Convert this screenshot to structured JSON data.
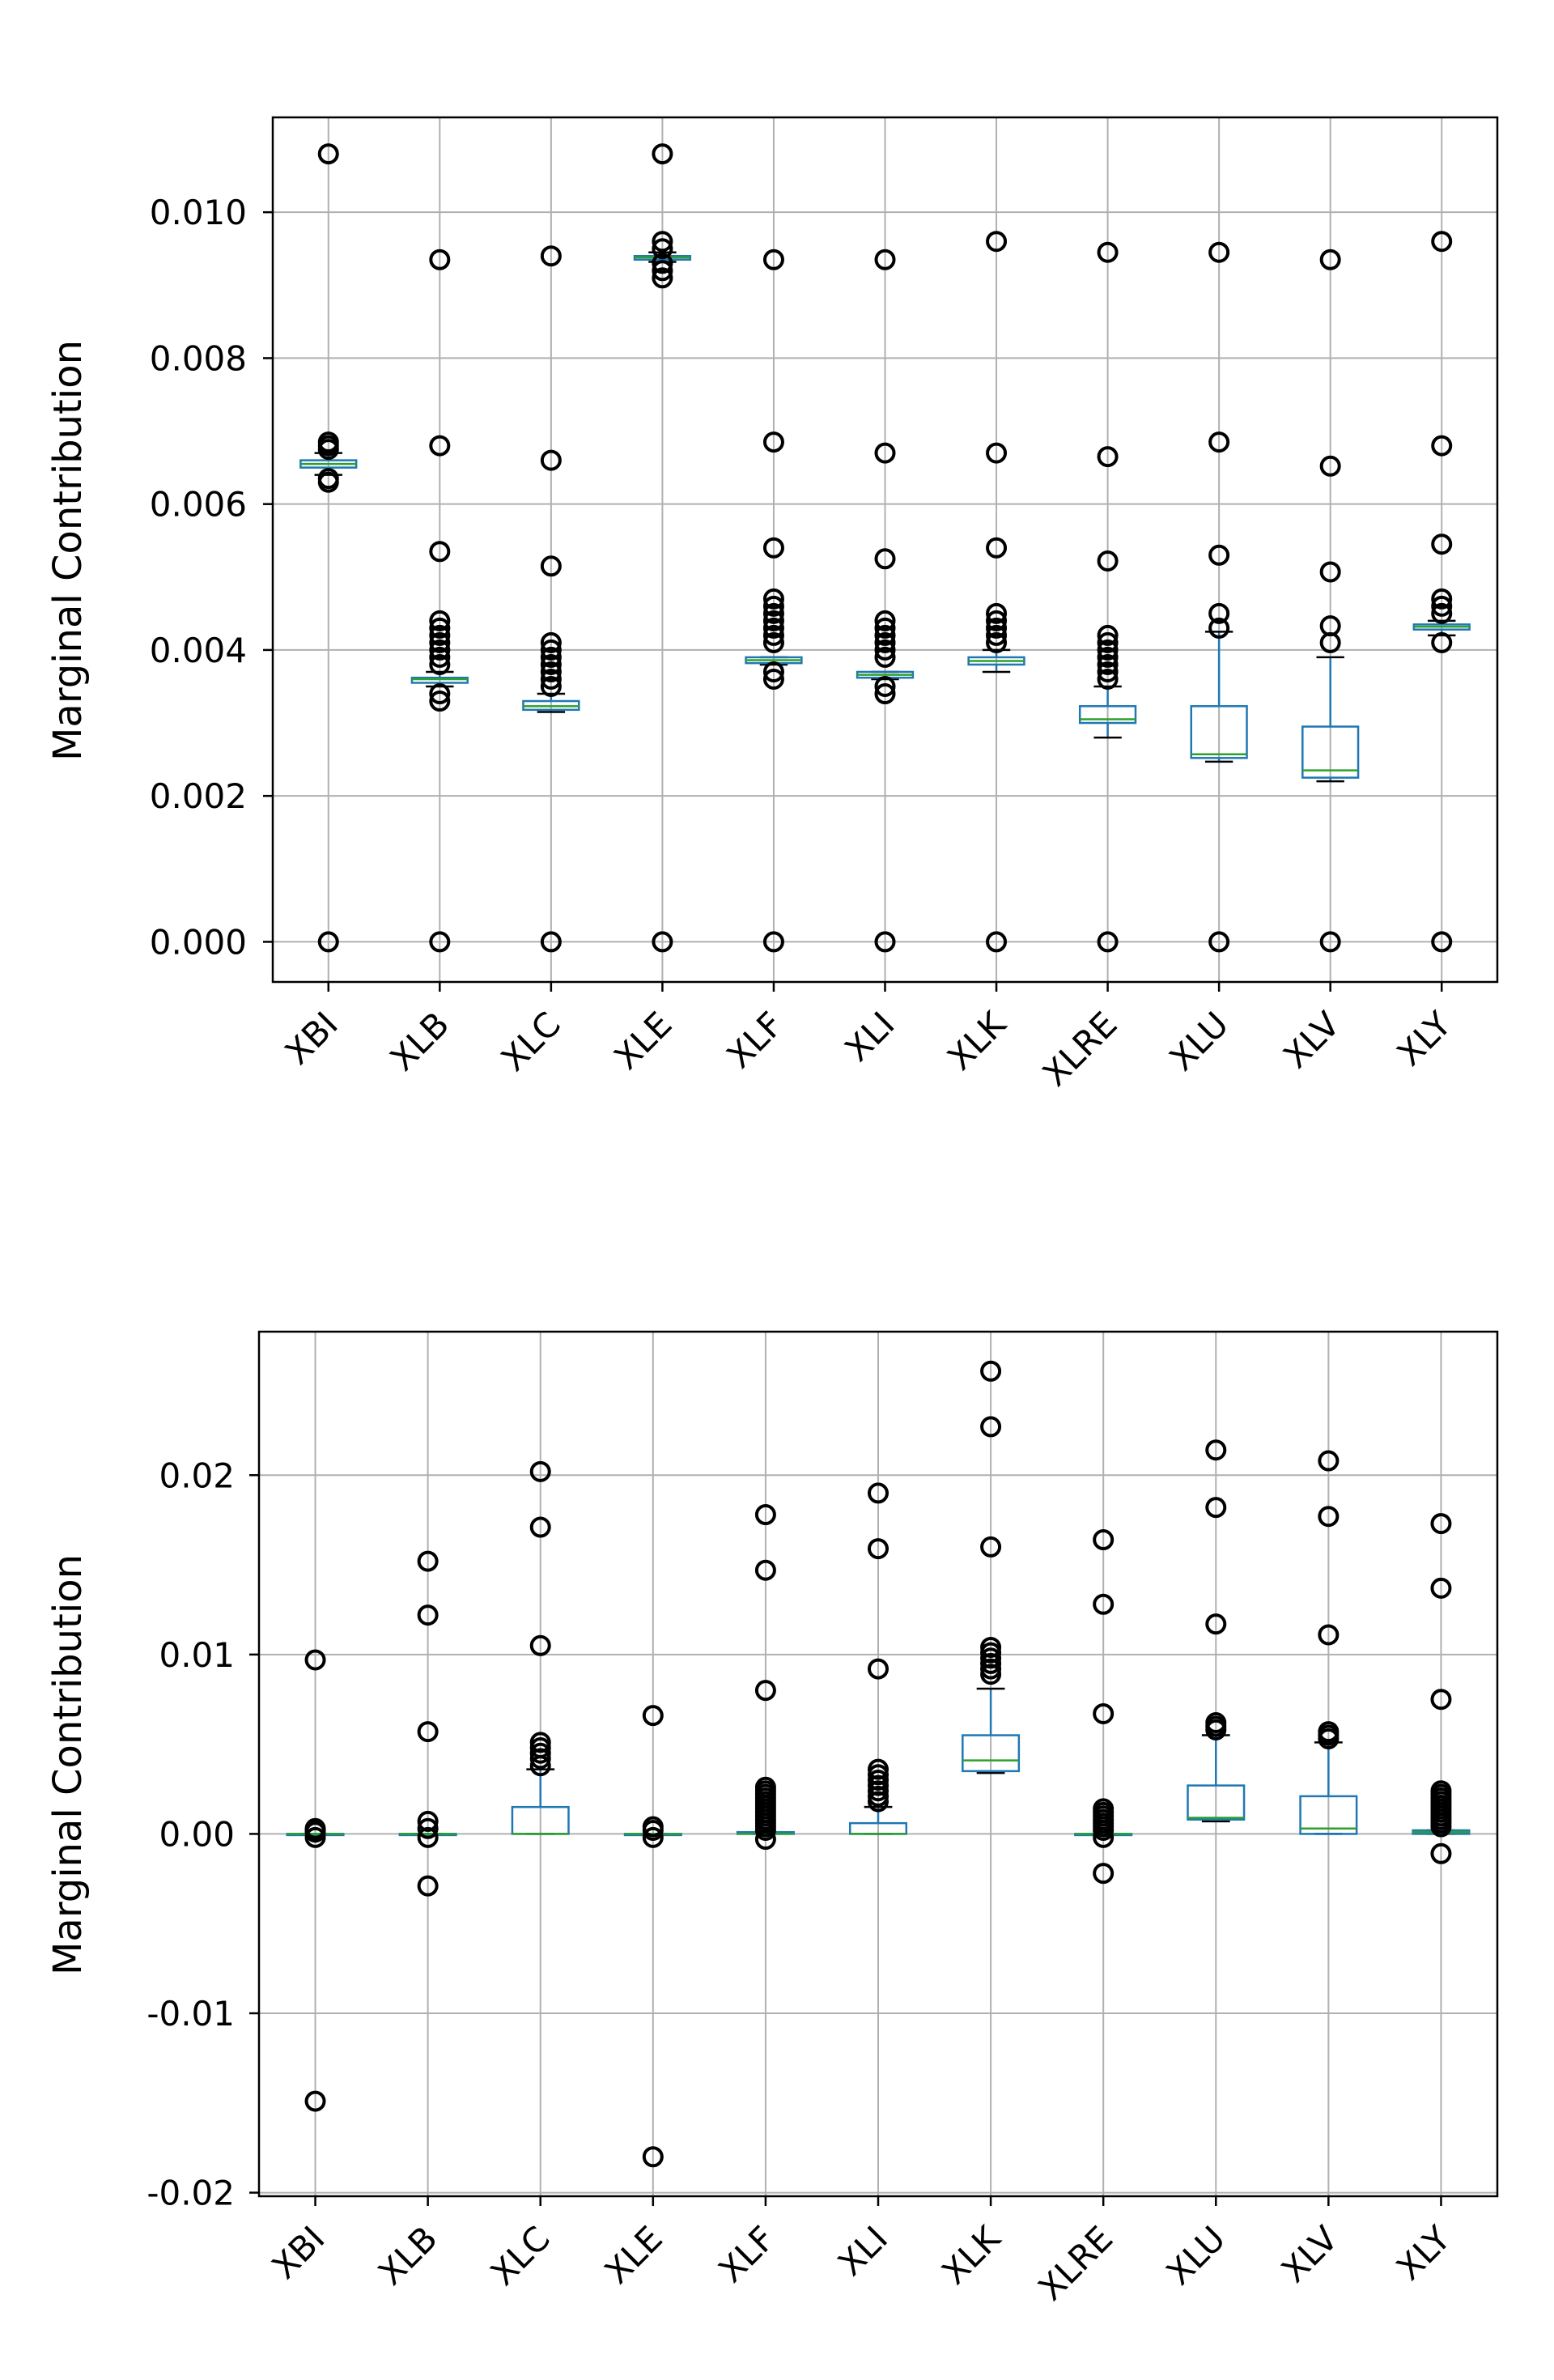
{
  "chart_data": [
    {
      "type": "box",
      "ylabel": "Marginal Contribution",
      "ylim": [
        -0.00055,
        0.0113
      ],
      "yticks": [
        0.0,
        0.002,
        0.004,
        0.006,
        0.008,
        0.01
      ],
      "ytick_labels": [
        "0.000",
        "0.002",
        "0.004",
        "0.006",
        "0.008",
        "0.010"
      ],
      "grid": true,
      "categories": [
        "XBI",
        "XLB",
        "XLC",
        "XLE",
        "XLF",
        "XLI",
        "XLK",
        "XLRE",
        "XLU",
        "XLV",
        "XLY"
      ],
      "boxes": [
        {
          "whislo": 0.0064,
          "q1": 0.0065,
          "med": 0.00655,
          "q3": 0.0066,
          "whishi": 0.0067,
          "fliers": [
            0.0,
            0.0063,
            0.00635,
            0.00675,
            0.0068,
            0.00685,
            0.0108
          ]
        },
        {
          "whislo": 0.0035,
          "q1": 0.00355,
          "med": 0.0036,
          "q3": 0.00362,
          "whishi": 0.0037,
          "fliers": [
            0.0,
            0.0033,
            0.0034,
            0.0038,
            0.0039,
            0.004,
            0.0041,
            0.0042,
            0.0043,
            0.0044,
            0.00535,
            0.0068,
            0.00935
          ]
        },
        {
          "whislo": 0.00315,
          "q1": 0.00318,
          "med": 0.00323,
          "q3": 0.0033,
          "whishi": 0.0034,
          "fliers": [
            0.0,
            0.0035,
            0.0036,
            0.0037,
            0.0038,
            0.0039,
            0.004,
            0.0041,
            0.00515,
            0.0066,
            0.0094
          ]
        },
        {
          "whislo": 0.00932,
          "q1": 0.00935,
          "med": 0.00938,
          "q3": 0.0094,
          "whishi": 0.00945,
          "fliers": [
            0.0,
            0.0091,
            0.0092,
            0.0093,
            0.0095,
            0.0096,
            0.0108
          ]
        },
        {
          "whislo": 0.0038,
          "q1": 0.00382,
          "med": 0.00386,
          "q3": 0.0039,
          "whishi": 0.0039,
          "fliers": [
            0.0,
            0.0036,
            0.0037,
            0.0041,
            0.0042,
            0.0043,
            0.0044,
            0.0045,
            0.0046,
            0.0047,
            0.0054,
            0.00685,
            0.00935
          ]
        },
        {
          "whislo": 0.0036,
          "q1": 0.00362,
          "med": 0.00366,
          "q3": 0.0037,
          "whishi": 0.0037,
          "fliers": [
            0.0,
            0.0034,
            0.0035,
            0.0039,
            0.004,
            0.0041,
            0.0042,
            0.0043,
            0.0044,
            0.00525,
            0.0067,
            0.00935
          ]
        },
        {
          "whislo": 0.0037,
          "q1": 0.0038,
          "med": 0.00385,
          "q3": 0.0039,
          "whishi": 0.004,
          "fliers": [
            0.0,
            0.0041,
            0.0042,
            0.0043,
            0.0044,
            0.0045,
            0.0054,
            0.0067,
            0.0096
          ]
        },
        {
          "whislo": 0.0028,
          "q1": 0.003,
          "med": 0.00305,
          "q3": 0.00323,
          "whishi": 0.0035,
          "fliers": [
            0.0,
            0.0036,
            0.0037,
            0.0038,
            0.0039,
            0.004,
            0.0041,
            0.0042,
            0.00522,
            0.00665,
            0.00945
          ]
        },
        {
          "whislo": 0.00247,
          "q1": 0.00252,
          "med": 0.00257,
          "q3": 0.00323,
          "whishi": 0.00425,
          "fliers": [
            0.0,
            0.0043,
            0.0045,
            0.0053,
            0.00685,
            0.00945
          ]
        },
        {
          "whislo": 0.0022,
          "q1": 0.00225,
          "med": 0.00235,
          "q3": 0.00295,
          "whishi": 0.0039,
          "fliers": [
            0.0,
            0.0041,
            0.00433,
            0.00507,
            0.00652,
            0.00935
          ]
        },
        {
          "whislo": 0.0042,
          "q1": 0.00428,
          "med": 0.00432,
          "q3": 0.00435,
          "whishi": 0.0044,
          "fliers": [
            0.0,
            0.0041,
            0.0045,
            0.0046,
            0.0047,
            0.00545,
            0.0068,
            0.0096
          ]
        }
      ]
    },
    {
      "type": "box",
      "ylabel": "Marginal Contribution",
      "ylim": [
        -0.0202,
        0.028
      ],
      "yticks": [
        -0.02,
        -0.01,
        0.0,
        0.01,
        0.02
      ],
      "ytick_labels": [
        "-0.02",
        "-0.01",
        "0.00",
        "0.01",
        "0.02"
      ],
      "grid": true,
      "categories": [
        "XBI",
        "XLB",
        "XLC",
        "XLE",
        "XLF",
        "XLI",
        "XLK",
        "XLRE",
        "XLU",
        "XLV",
        "XLY"
      ],
      "boxes": [
        {
          "whislo": 0.0,
          "q1": 0.0,
          "med": 0.0,
          "q3": 0.0,
          "whishi": 0.0,
          "fliers": [
            -0.0149,
            -0.0002,
            0.0001,
            0.0002,
            0.0003,
            0.0097
          ]
        },
        {
          "whislo": 0.0,
          "q1": 0.0,
          "med": 0.0,
          "q3": 0.0,
          "whishi": 0.0,
          "fliers": [
            -0.0029,
            -0.0002,
            0.0003,
            0.0007,
            0.0057,
            0.0122,
            0.0152
          ]
        },
        {
          "whislo": 0.0,
          "q1": 0.0,
          "med": 0.0,
          "q3": 0.0015,
          "whishi": 0.0036,
          "fliers": [
            0.0038,
            0.0042,
            0.0045,
            0.0048,
            0.0051,
            0.0105,
            0.0171,
            0.0202
          ]
        },
        {
          "whislo": 0.0,
          "q1": 0.0,
          "med": 0.0,
          "q3": 0.0,
          "whishi": 0.0,
          "fliers": [
            -0.018,
            -0.0002,
            0.0002,
            0.0004,
            0.0066
          ]
        },
        {
          "whislo": 0.0,
          "q1": 0.0,
          "med": 0.0,
          "q3": 0.0001,
          "whishi": 0.0001,
          "fliers": [
            -0.0003,
            0.0002,
            0.0004,
            0.0006,
            0.0008,
            0.001,
            0.0012,
            0.0014,
            0.0016,
            0.0018,
            0.002,
            0.0022,
            0.0024,
            0.0026,
            0.008,
            0.0147,
            0.0178
          ]
        },
        {
          "whislo": 0.0,
          "q1": 0.0,
          "med": 0.0,
          "q3": 0.0006,
          "whishi": 0.0015,
          "fliers": [
            0.0018,
            0.0021,
            0.0024,
            0.0027,
            0.003,
            0.0033,
            0.0036,
            0.0092,
            0.0159,
            0.019
          ]
        },
        {
          "whislo": 0.0034,
          "q1": 0.0035,
          "med": 0.0041,
          "q3": 0.0055,
          "whishi": 0.0081,
          "fliers": [
            0.0089,
            0.0092,
            0.0095,
            0.0098,
            0.0101,
            0.0104,
            0.016,
            0.0227,
            0.0258
          ]
        },
        {
          "whislo": 0.0,
          "q1": 0.0,
          "med": 0.0,
          "q3": 0.0,
          "whishi": 0.0,
          "fliers": [
            -0.0022,
            -0.0002,
            0.0002,
            0.0004,
            0.0006,
            0.0008,
            0.001,
            0.0012,
            0.0014,
            0.0067,
            0.0128,
            0.0164
          ]
        },
        {
          "whislo": 0.0007,
          "q1": 0.0008,
          "med": 0.0009,
          "q3": 0.0027,
          "whishi": 0.0055,
          "fliers": [
            0.0058,
            0.006,
            0.0062,
            0.0117,
            0.0182,
            0.0214
          ]
        },
        {
          "whislo": 0.0,
          "q1": 0.0,
          "med": 0.0003,
          "q3": 0.0021,
          "whishi": 0.0051,
          "fliers": [
            0.0053,
            0.0055,
            0.0057,
            0.0111,
            0.0177,
            0.0208
          ]
        },
        {
          "whislo": 0.0,
          "q1": 0.0,
          "med": 0.0001,
          "q3": 0.0002,
          "whishi": 0.0002,
          "fliers": [
            -0.0011,
            0.0004,
            0.0006,
            0.0008,
            0.001,
            0.0012,
            0.0014,
            0.0016,
            0.0018,
            0.002,
            0.0022,
            0.0024,
            0.0075,
            0.0137,
            0.0173
          ]
        }
      ]
    }
  ]
}
